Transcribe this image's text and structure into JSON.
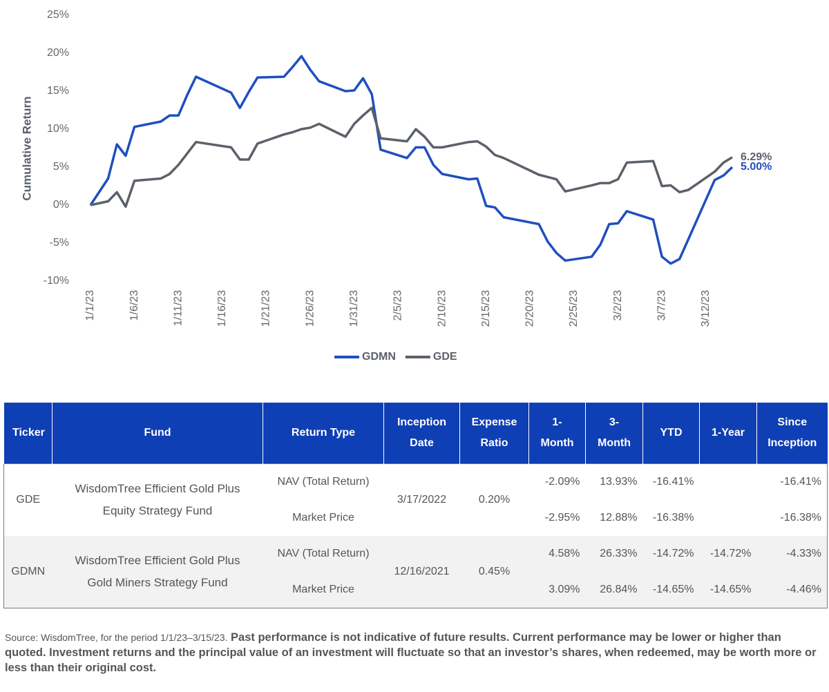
{
  "chart_data": {
    "type": "line",
    "y_label": "Cumulative Return",
    "x": [
      "1/1/23",
      "1/3/23",
      "1/4/23",
      "1/5/23",
      "1/6/23",
      "1/9/23",
      "1/10/23",
      "1/11/23",
      "1/12/23",
      "1/13/23",
      "1/17/23",
      "1/18/23",
      "1/19/23",
      "1/20/23",
      "1/23/23",
      "1/24/23",
      "1/25/23",
      "1/26/23",
      "1/27/23",
      "1/30/23",
      "1/31/23",
      "2/1/23",
      "2/2/23",
      "2/3/23",
      "2/6/23",
      "2/7/23",
      "2/8/23",
      "2/9/23",
      "2/10/23",
      "2/13/23",
      "2/14/23",
      "2/15/23",
      "2/16/23",
      "2/17/23",
      "2/21/23",
      "2/22/23",
      "2/23/23",
      "2/24/23",
      "2/27/23",
      "2/28/23",
      "3/1/23",
      "3/2/23",
      "3/3/23",
      "3/6/23",
      "3/7/23",
      "3/8/23",
      "3/9/23",
      "3/10/23",
      "3/13/23",
      "3/14/23",
      "3/15/23"
    ],
    "xlim": [
      "1/1/23",
      "3/15/23"
    ],
    "xticks": [
      "1/1/23",
      "1/6/23",
      "1/11/23",
      "1/16/23",
      "1/21/23",
      "1/26/23",
      "1/31/23",
      "2/5/23",
      "2/10/23",
      "2/15/23",
      "2/20/23",
      "2/25/23",
      "3/2/23",
      "3/7/23",
      "3/12/23"
    ],
    "ylim": [
      -10,
      25
    ],
    "yticks": [
      {
        "value": -10,
        "label": "-10%"
      },
      {
        "value": -5,
        "label": "-5%"
      },
      {
        "value": 0,
        "label": "0%"
      },
      {
        "value": 5,
        "label": "5%"
      },
      {
        "value": 10,
        "label": "10%"
      },
      {
        "value": 15,
        "label": "15%"
      },
      {
        "value": 20,
        "label": "20%"
      },
      {
        "value": 25,
        "label": "25%"
      }
    ],
    "grid": false,
    "series": [
      {
        "name": "GDMN",
        "color": "#1f4fbf",
        "values": [
          0,
          3.5,
          8,
          6.5,
          10.3,
          11,
          11.8,
          11.8,
          14.5,
          16.9,
          14.8,
          12.8,
          14.9,
          16.8,
          16.9,
          18.2,
          19.6,
          17.8,
          16.3,
          15.0,
          15.1,
          16.7,
          14.6,
          7.3,
          6.2,
          7.6,
          7.6,
          5.3,
          4.1,
          3.4,
          3.5,
          -0.1,
          -0.3,
          -1.6,
          -2.5,
          -4.8,
          -6.3,
          -7.3,
          -6.8,
          -5.2,
          -2.5,
          -2.4,
          -0.8,
          -1.9,
          -6.8,
          -7.7,
          -7.1,
          -4.5,
          3.3,
          3.9,
          5.0
        ],
        "value_labels": [
          null,
          null,
          null,
          null,
          null,
          null,
          null,
          null,
          null,
          null,
          null,
          null,
          null,
          null,
          null,
          null,
          null,
          null,
          null,
          null,
          null,
          null,
          null,
          null,
          null,
          null,
          null,
          null,
          null,
          null,
          null,
          null,
          null,
          null,
          null,
          null,
          null,
          null,
          null,
          null,
          null,
          null,
          null,
          null,
          null,
          null,
          null,
          null,
          null,
          null,
          "5.00%"
        ]
      },
      {
        "name": "GDE",
        "color": "#5b6169",
        "values": [
          0,
          0.5,
          1.7,
          -0.2,
          3.2,
          3.5,
          4.1,
          5.3,
          6.8,
          8.3,
          7.6,
          6.0,
          6.0,
          8.1,
          9.3,
          9.6,
          10.0,
          10.2,
          10.7,
          9.0,
          10.7,
          11.8,
          12.8,
          8.8,
          8.4,
          10.0,
          9.0,
          7.6,
          7.6,
          8.3,
          8.4,
          7.7,
          6.6,
          6.2,
          4.0,
          3.7,
          3.4,
          1.8,
          2.6,
          2.9,
          2.9,
          3.4,
          5.6,
          5.8,
          2.5,
          2.6,
          1.7,
          2.0,
          4.4,
          5.6,
          6.29
        ],
        "value_labels": [
          null,
          null,
          null,
          null,
          null,
          null,
          null,
          null,
          null,
          null,
          null,
          null,
          null,
          null,
          null,
          null,
          null,
          null,
          null,
          null,
          null,
          null,
          null,
          null,
          null,
          null,
          null,
          null,
          null,
          null,
          null,
          null,
          null,
          null,
          null,
          null,
          null,
          null,
          null,
          null,
          null,
          null,
          null,
          null,
          null,
          null,
          null,
          null,
          null,
          null,
          "6.29%"
        ]
      }
    ]
  },
  "table": {
    "header": [
      "Ticker",
      "Fund",
      "Return Type",
      "Inception Date",
      "Expense Ratio",
      "1-Month",
      "3-Month",
      "YTD",
      "1-Year",
      "Since Inception"
    ],
    "funds": [
      {
        "ticker": "GDE",
        "fund": "WisdomTree Efficient Gold Plus Equity Strategy Fund",
        "inception": "3/17/2022",
        "expense": "0.20%",
        "rows": [
          {
            "return_type": "NAV (Total Return)",
            "cells": [
              "-2.09%",
              "13.93%",
              "-16.41%",
              null,
              "-16.41%"
            ]
          },
          {
            "return_type": "Market Price",
            "cells": [
              "-2.95%",
              "12.88%",
              "-16.38%",
              null,
              "-16.38%"
            ]
          }
        ]
      },
      {
        "ticker": "GDMN",
        "fund": "WisdomTree Efficient Gold Plus Gold Miners Strategy Fund",
        "inception": "12/16/2021",
        "expense": "0.45%",
        "rows": [
          {
            "return_type": "NAV (Total Return)",
            "cells": [
              "4.58%",
              "26.33%",
              "-14.72%",
              "-14.72%",
              "-4.33%"
            ]
          },
          {
            "return_type": "Market Price",
            "cells": [
              "3.09%",
              "26.84%",
              "-14.65%",
              "-14.65%",
              "-4.46%"
            ]
          }
        ]
      }
    ]
  },
  "footnote": {
    "source": "Source: WisdomTree, for the period 1/1/23–3/15/23.",
    "disclaimer": "Past performance is not indicative of future results. Current performance may be lower or higher than quoted. Investment returns and the principal value of an investment will fluctuate so that an investor’s shares, when redeemed, may be worth more or less than their original cost."
  }
}
